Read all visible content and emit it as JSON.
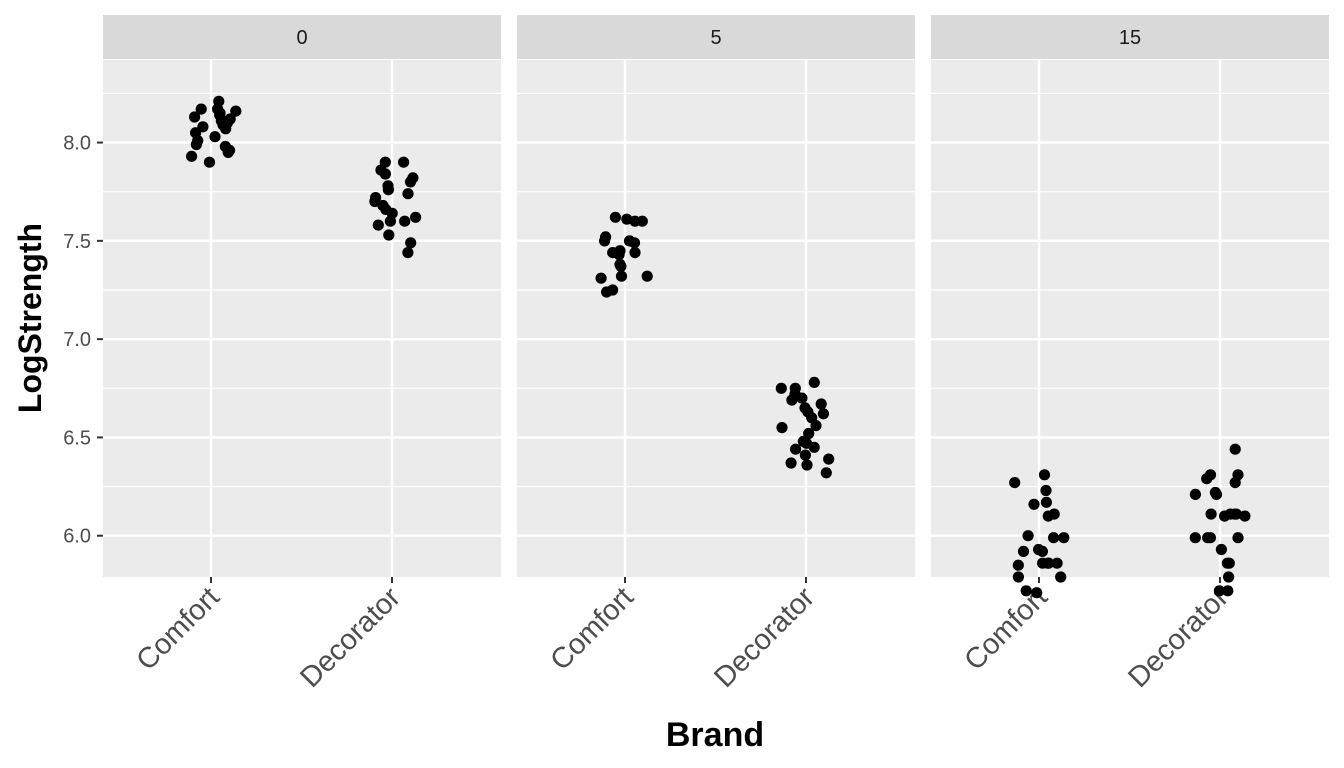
{
  "chart_data": {
    "type": "scatter",
    "xlabel": "Brand",
    "ylabel": "LogStrength",
    "categories": [
      "Comfort",
      "Decorator"
    ],
    "y_ticks": [
      "6.0",
      "6.5",
      "7.0",
      "7.5",
      "8.0"
    ],
    "ylim": [
      5.79,
      8.42
    ],
    "facets": [
      {
        "label": "0",
        "series": [
          {
            "category": "Comfort",
            "values": [
              8.21,
              8.17,
              8.17,
              8.16,
              8.15,
              8.14,
              8.13,
              8.12,
              8.11,
              8.1,
              8.09,
              8.08,
              8.07,
              8.05,
              8.03,
              8.01,
              7.99,
              7.98,
              7.96,
              7.95,
              7.93,
              7.9
            ]
          },
          {
            "category": "Decorator",
            "values": [
              7.9,
              7.9,
              7.86,
              7.84,
              7.82,
              7.8,
              7.78,
              7.76,
              7.74,
              7.72,
              7.7,
              7.68,
              7.66,
              7.64,
              7.62,
              7.6,
              7.6,
              7.58,
              7.53,
              7.49,
              7.44
            ]
          }
        ]
      },
      {
        "label": "5",
        "series": [
          {
            "category": "Comfort",
            "values": [
              7.62,
              7.61,
              7.6,
              7.6,
              7.52,
              7.5,
              7.5,
              7.49,
              7.45,
              7.44,
              7.44,
              7.43,
              7.38,
              7.37,
              7.32,
              7.32,
              7.31,
              7.25,
              7.24
            ]
          },
          {
            "category": "Decorator",
            "values": [
              6.78,
              6.75,
              6.75,
              6.72,
              6.7,
              6.69,
              6.67,
              6.65,
              6.63,
              6.62,
              6.6,
              6.56,
              6.55,
              6.52,
              6.48,
              6.47,
              6.45,
              6.44,
              6.41,
              6.39,
              6.37,
              6.36,
              6.32
            ]
          }
        ]
      },
      {
        "label": "15",
        "series": [
          {
            "category": "Comfort",
            "values": [
              6.31,
              6.27,
              6.23,
              6.17,
              6.16,
              6.11,
              6.1,
              6.0,
              5.99,
              5.99,
              5.93,
              5.92,
              5.92,
              5.86,
              5.86,
              5.86,
              5.86,
              5.85,
              5.79,
              5.79,
              5.72,
              5.71
            ]
          },
          {
            "category": "Decorator",
            "values": [
              6.44,
              6.31,
              6.31,
              6.29,
              6.27,
              6.22,
              6.21,
              6.21,
              6.11,
              6.11,
              6.11,
              6.11,
              6.1,
              6.1,
              5.99,
              5.99,
              5.99,
              5.99,
              5.93,
              5.86,
              5.86,
              5.79,
              5.72,
              5.72
            ]
          }
        ]
      }
    ]
  }
}
